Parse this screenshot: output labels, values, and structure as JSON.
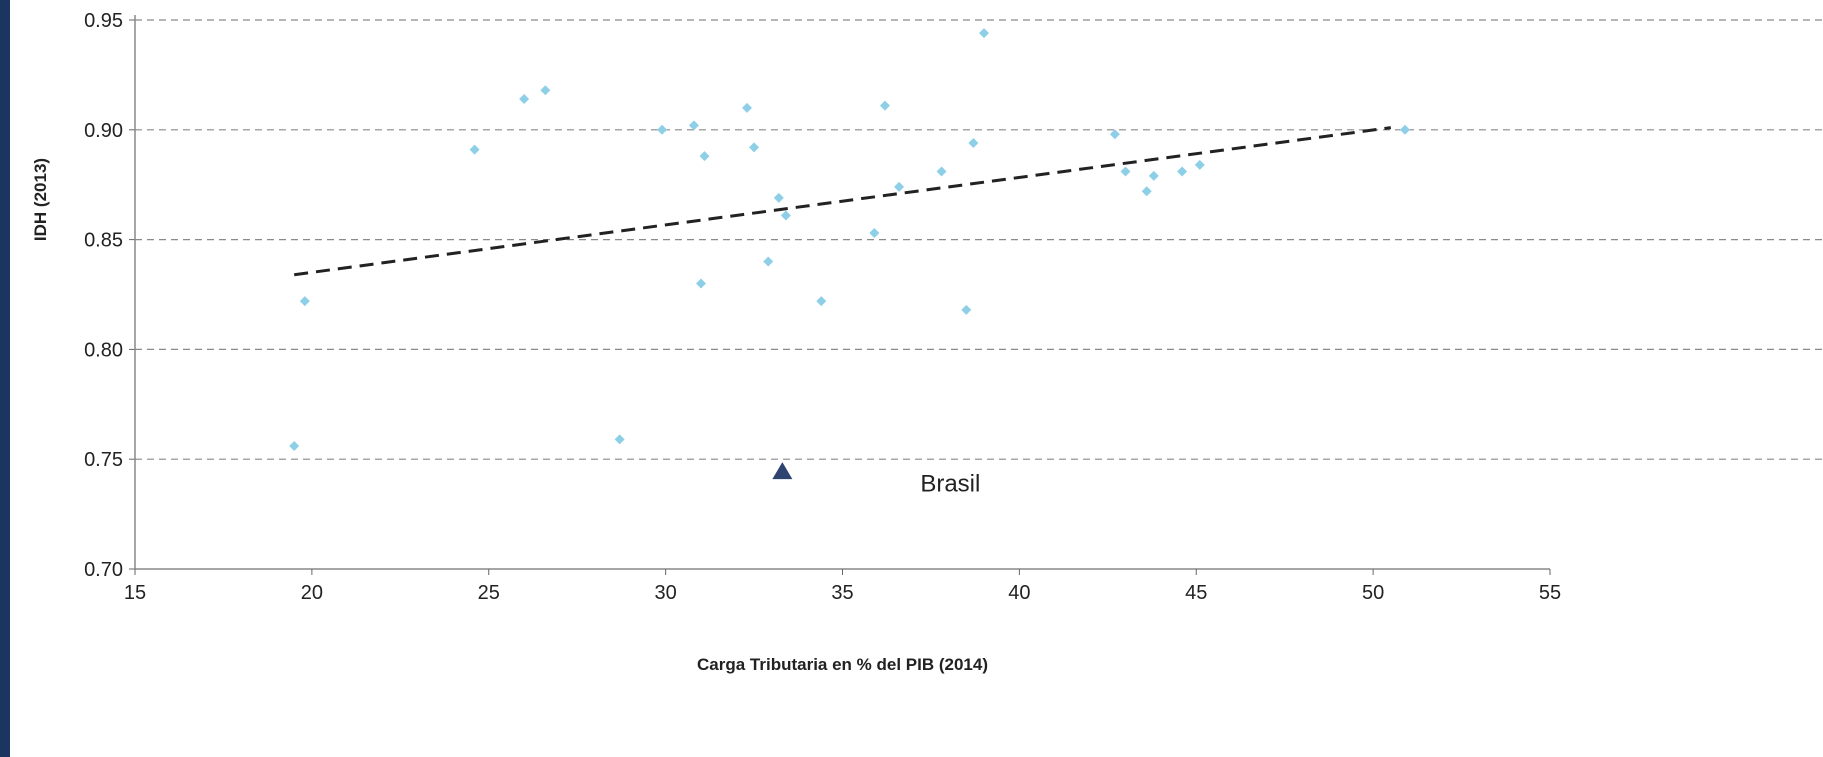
{
  "chart_data": {
    "type": "scatter",
    "title": "",
    "xlabel": "Carga Tributaria en % del PIB (2014)",
    "ylabel": "IDH (2013)",
    "xlim": [
      15,
      55
    ],
    "ylim": [
      0.7,
      0.95
    ],
    "x_ticks": [
      "15",
      "20",
      "25",
      "30",
      "35",
      "40",
      "45",
      "50",
      "55"
    ],
    "y_ticks": [
      "0.70",
      "0.75",
      "0.80",
      "0.85",
      "0.90",
      "0.95"
    ],
    "grid": "horizontal-dashed",
    "series": [
      {
        "marker": "diamond",
        "color": "#8ecfe8",
        "points": [
          {
            "x": 19.5,
            "y": 0.756
          },
          {
            "x": 19.8,
            "y": 0.822
          },
          {
            "x": 24.6,
            "y": 0.891
          },
          {
            "x": 26.0,
            "y": 0.914
          },
          {
            "x": 26.6,
            "y": 0.918
          },
          {
            "x": 28.7,
            "y": 0.759
          },
          {
            "x": 29.9,
            "y": 0.9
          },
          {
            "x": 30.8,
            "y": 0.902
          },
          {
            "x": 31.0,
            "y": 0.83
          },
          {
            "x": 31.1,
            "y": 0.888
          },
          {
            "x": 32.3,
            "y": 0.91
          },
          {
            "x": 32.5,
            "y": 0.892
          },
          {
            "x": 32.9,
            "y": 0.84
          },
          {
            "x": 33.2,
            "y": 0.869
          },
          {
            "x": 33.4,
            "y": 0.861
          },
          {
            "x": 34.4,
            "y": 0.822
          },
          {
            "x": 35.9,
            "y": 0.853
          },
          {
            "x": 36.2,
            "y": 0.911
          },
          {
            "x": 36.6,
            "y": 0.874
          },
          {
            "x": 37.8,
            "y": 0.881
          },
          {
            "x": 38.5,
            "y": 0.818
          },
          {
            "x": 38.7,
            "y": 0.894
          },
          {
            "x": 39.0,
            "y": 0.944
          },
          {
            "x": 42.7,
            "y": 0.898
          },
          {
            "x": 43.0,
            "y": 0.881
          },
          {
            "x": 43.6,
            "y": 0.872
          },
          {
            "x": 43.8,
            "y": 0.879
          },
          {
            "x": 44.6,
            "y": 0.881
          },
          {
            "x": 45.1,
            "y": 0.884
          },
          {
            "x": 50.9,
            "y": 0.9
          }
        ]
      },
      {
        "name": "Brasil",
        "marker": "triangle",
        "color": "#2f4370",
        "points": [
          {
            "x": 33.3,
            "y": 0.744
          }
        ]
      }
    ],
    "trendline": {
      "style": "dashed",
      "color": "#222222",
      "from": {
        "x": 19.5,
        "y": 0.834
      },
      "to": {
        "x": 50.5,
        "y": 0.901
      }
    },
    "annotations": [
      {
        "text": "Brasil",
        "x": 37.2,
        "y": 0.739
      }
    ]
  }
}
